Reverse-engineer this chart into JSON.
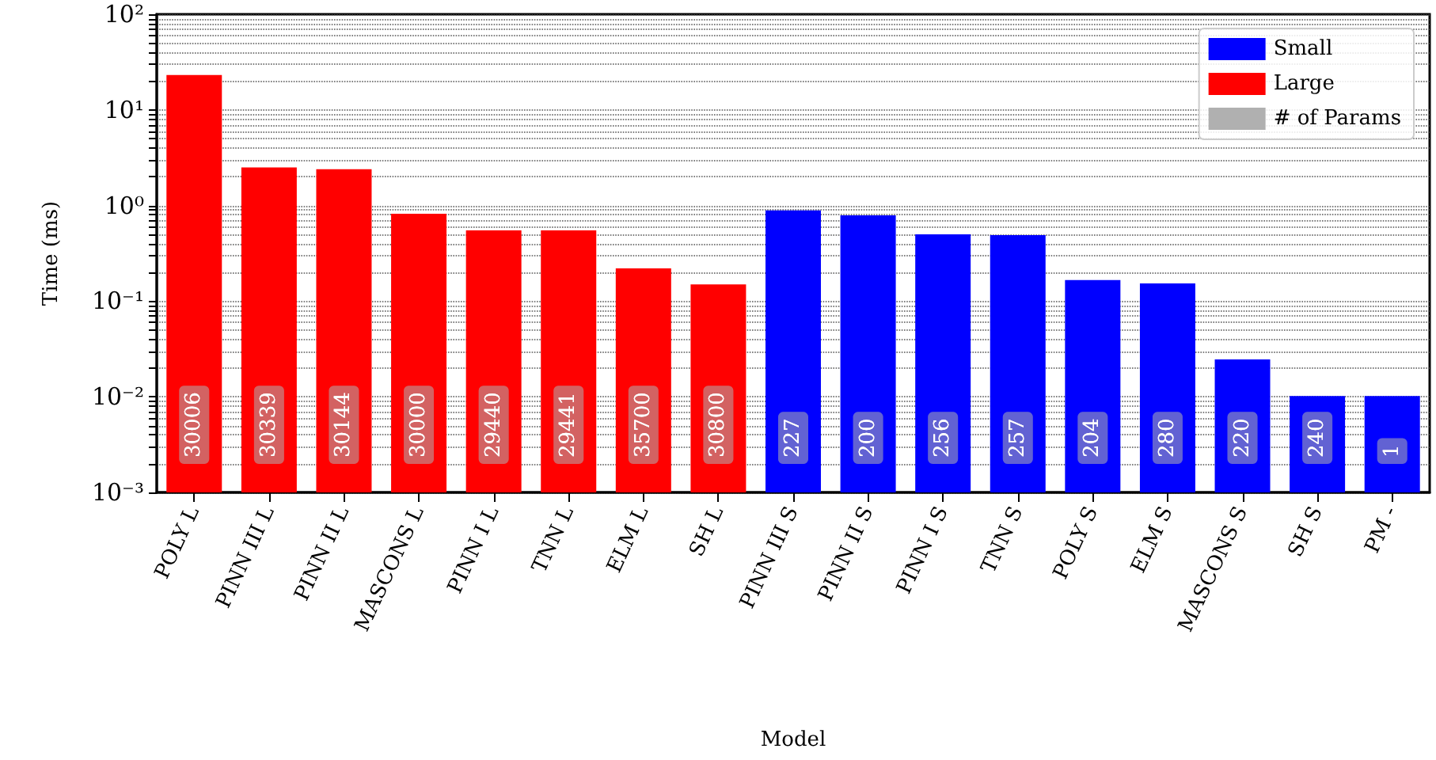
{
  "chart_data": {
    "type": "bar",
    "xlabel": "Model",
    "ylabel": "Time (ms)",
    "categories": [
      "POLY L",
      "PINN III L",
      "PINN II L",
      "MASCONS L",
      "PINN I L",
      "TNN L",
      "ELM L",
      "SH L",
      "PINN III S",
      "PINN II S",
      "PINN I S",
      "TNN S",
      "POLY S",
      "ELM S",
      "MASCONS S",
      "SH S",
      "PM -"
    ],
    "series": [
      {
        "name": "Small",
        "color": "#0000ff",
        "values": [
          null,
          null,
          null,
          null,
          null,
          null,
          null,
          null,
          0.89,
          0.79,
          0.5,
          0.49,
          0.166,
          0.153,
          0.0246,
          0.0102,
          0.0102
        ]
      },
      {
        "name": "Large",
        "color": "#ff0000",
        "values": [
          23.2,
          2.5,
          2.4,
          0.82,
          0.55,
          0.55,
          0.22,
          0.15,
          null,
          null,
          null,
          null,
          null,
          null,
          null,
          null,
          null
        ]
      },
      {
        "name": "# of Params",
        "color": "#b0b0b0",
        "values": [
          null,
          null,
          null,
          null,
          null,
          null,
          null,
          null,
          null,
          null,
          null,
          null,
          null,
          null,
          null,
          null,
          null
        ],
        "value_labels": [
          "30006",
          "30339",
          "30144",
          "30000",
          "29440",
          "29441",
          "35700",
          "30800",
          "227",
          "200",
          "256",
          "257",
          "204",
          "280",
          "220",
          "240",
          "1"
        ]
      }
    ],
    "log": "y",
    "ylim": [
      0.001,
      100
    ],
    "yticks": [
      {
        "value": 0.001,
        "label": "10⁻³"
      },
      {
        "value": 0.002,
        "label": null
      },
      {
        "value": 0.003,
        "label": null
      },
      {
        "value": 0.004,
        "label": null
      },
      {
        "value": 0.005,
        "label": null
      },
      {
        "value": 0.006,
        "label": null
      },
      {
        "value": 0.007,
        "label": null
      },
      {
        "value": 0.008,
        "label": null
      },
      {
        "value": 0.009,
        "label": null
      },
      {
        "value": 0.01,
        "label": "10⁻²"
      },
      {
        "value": 0.02,
        "label": null
      },
      {
        "value": 0.03,
        "label": null
      },
      {
        "value": 0.04,
        "label": null
      },
      {
        "value": 0.05,
        "label": null
      },
      {
        "value": 0.06,
        "label": null
      },
      {
        "value": 0.07,
        "label": null
      },
      {
        "value": 0.08,
        "label": null
      },
      {
        "value": 0.09,
        "label": null
      },
      {
        "value": 0.1,
        "label": "10⁻¹"
      },
      {
        "value": 0.2,
        "label": null
      },
      {
        "value": 0.3,
        "label": null
      },
      {
        "value": 0.4,
        "label": null
      },
      {
        "value": 0.5,
        "label": null
      },
      {
        "value": 0.6,
        "label": null
      },
      {
        "value": 0.7,
        "label": null
      },
      {
        "value": 0.8,
        "label": null
      },
      {
        "value": 0.9,
        "label": null
      },
      {
        "value": 1,
        "label": "10⁰"
      },
      {
        "value": 2,
        "label": null
      },
      {
        "value": 3,
        "label": null
      },
      {
        "value": 4,
        "label": null
      },
      {
        "value": 5,
        "label": null
      },
      {
        "value": 6,
        "label": null
      },
      {
        "value": 7,
        "label": null
      },
      {
        "value": 8,
        "label": null
      },
      {
        "value": 9,
        "label": null
      },
      {
        "value": 10,
        "label": "10¹"
      },
      {
        "value": 20,
        "label": null
      },
      {
        "value": 30,
        "label": null
      },
      {
        "value": 40,
        "label": null
      },
      {
        "value": 50,
        "label": null
      },
      {
        "value": 60,
        "label": null
      },
      {
        "value": 70,
        "label": null
      },
      {
        "value": 80,
        "label": null
      },
      {
        "value": 90,
        "label": null
      },
      {
        "value": 100,
        "label": "10²"
      }
    ],
    "grid": "y",
    "legend": "top right"
  }
}
